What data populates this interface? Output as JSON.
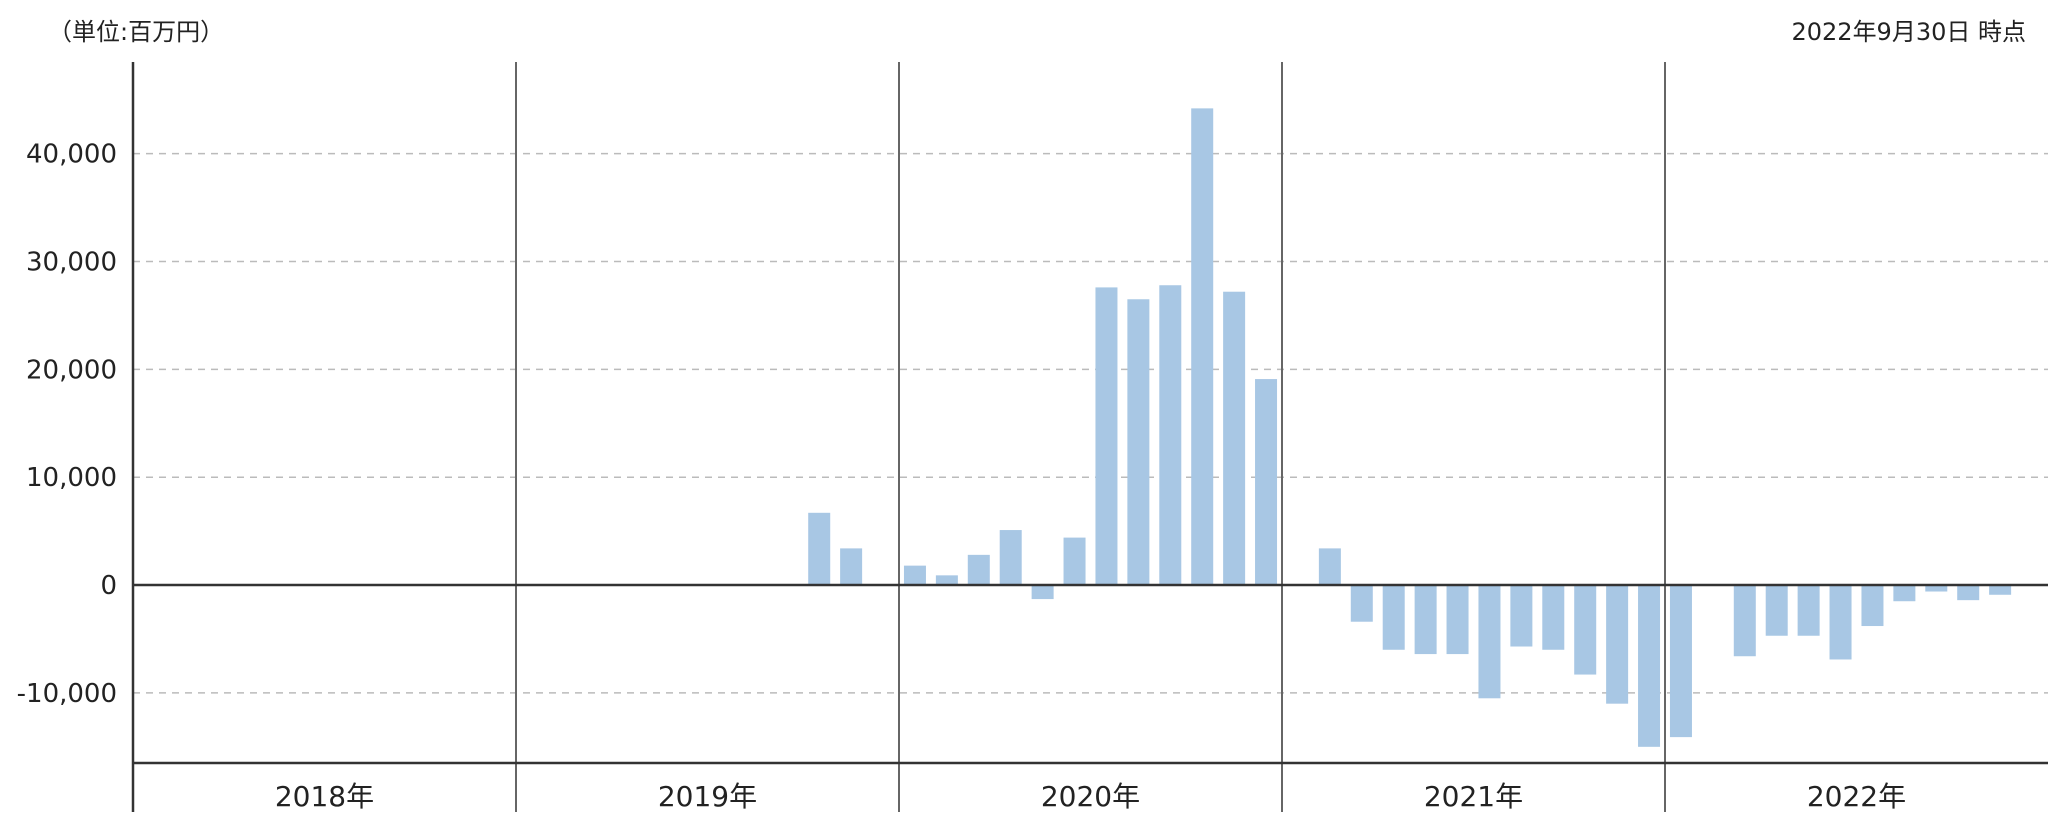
{
  "header": {
    "unit_label": "（単位:百万円）",
    "as_of_label": "2022年9月30日 時点"
  },
  "colors": {
    "bar": "#a8c7e4",
    "negative_tick": "#e02020",
    "axis": "#333333",
    "grid": "#bbbbbb"
  },
  "chart_data": {
    "type": "bar",
    "title": "",
    "xlabel": "",
    "ylabel": "",
    "ylim": [
      -16500,
      48500
    ],
    "y_ticks": [
      {
        "value": 40000,
        "label": "40,000"
      },
      {
        "value": 30000,
        "label": "30,000"
      },
      {
        "value": 20000,
        "label": "20,000"
      },
      {
        "value": 10000,
        "label": "10,000"
      },
      {
        "value": 0,
        "label": "0"
      },
      {
        "value": -10000,
        "label": "-10,000"
      }
    ],
    "years": [
      "2018年",
      "2019年",
      "2020年",
      "2021年",
      "2022年"
    ],
    "categories": [
      "2018-01",
      "2018-02",
      "2018-03",
      "2018-04",
      "2018-05",
      "2018-06",
      "2018-07",
      "2018-08",
      "2018-09",
      "2018-10",
      "2018-11",
      "2018-12",
      "2019-01",
      "2019-02",
      "2019-03",
      "2019-04",
      "2019-05",
      "2019-06",
      "2019-07",
      "2019-08",
      "2019-09",
      "2019-10",
      "2019-11",
      "2019-12",
      "2020-01",
      "2020-02",
      "2020-03",
      "2020-04",
      "2020-05",
      "2020-06",
      "2020-07",
      "2020-08",
      "2020-09",
      "2020-10",
      "2020-11",
      "2020-12",
      "2021-01",
      "2021-02",
      "2021-03",
      "2021-04",
      "2021-05",
      "2021-06",
      "2021-07",
      "2021-08",
      "2021-09",
      "2021-10",
      "2021-11",
      "2021-12",
      "2022-01",
      "2022-02",
      "2022-03",
      "2022-04",
      "2022-05",
      "2022-06",
      "2022-07",
      "2022-08",
      "2022-09",
      "2022-10",
      "2022-11",
      "2022-12"
    ],
    "values": [
      null,
      null,
      null,
      null,
      null,
      null,
      null,
      null,
      null,
      null,
      null,
      null,
      null,
      null,
      null,
      null,
      null,
      null,
      null,
      null,
      null,
      6700,
      3400,
      null,
      1800,
      900,
      2800,
      5100,
      -1300,
      4400,
      27600,
      26500,
      27800,
      44200,
      27200,
      19100,
      null,
      3400,
      -3400,
      -6000,
      -6400,
      -6400,
      -10500,
      -5700,
      -6000,
      -8300,
      -11000,
      -15000,
      -14100,
      null,
      -6600,
      -4700,
      -4700,
      -6900,
      -3800,
      -1500,
      -600,
      -1400,
      -900,
      null
    ]
  }
}
